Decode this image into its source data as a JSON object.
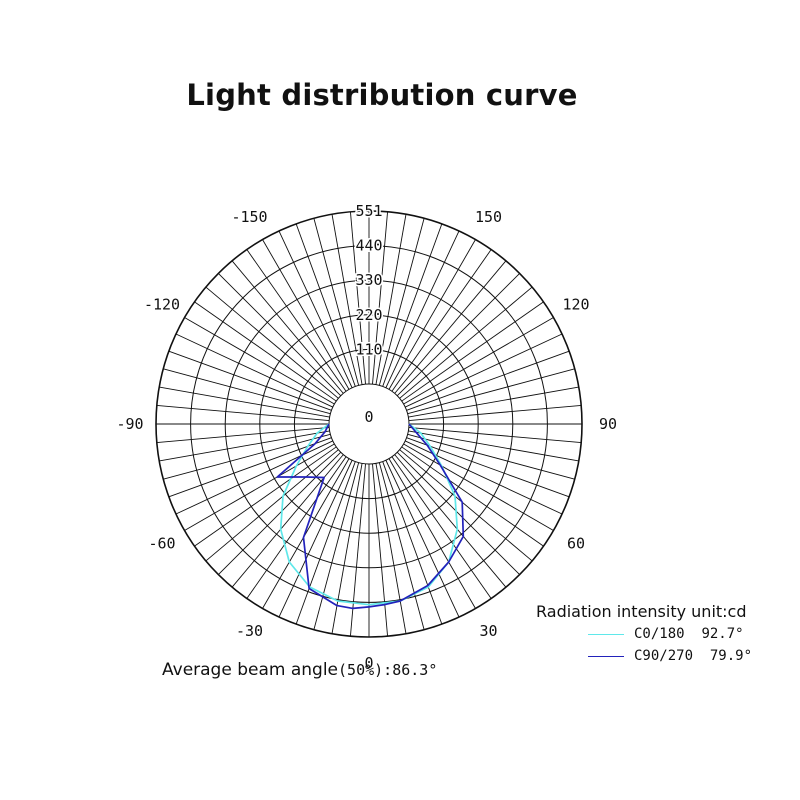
{
  "chart_data": {
    "type": "polar",
    "title": "Light distribution curve",
    "radial_ticks": [
      "0",
      "110",
      "220",
      "330",
      "440",
      "551"
    ],
    "radial_max": 551,
    "angle_labels": [
      "0",
      "30",
      "60",
      "90",
      "120",
      "150",
      "-150",
      "-120",
      "-90",
      "-60",
      "-30"
    ],
    "legend_title": "Radiation intensity unit:cd",
    "grid": true,
    "series": [
      {
        "name": "C0/180",
        "beam_angle": "92.7°",
        "color": "#5fe8ea",
        "angles": [
          -90,
          -80,
          -70,
          -60,
          -50,
          -40,
          -30,
          -20,
          -10,
          0,
          10,
          20,
          30,
          40,
          50,
          60,
          70,
          80,
          90
        ],
        "values": [
          0,
          40,
          80,
          140,
          230,
          310,
          380,
          425,
          445,
          448,
          445,
          425,
          380,
          310,
          230,
          140,
          80,
          40,
          0
        ]
      },
      {
        "name": "C90/270",
        "beam_angle": "79.9°",
        "color": "#2222bb",
        "angles": [
          -90,
          -80,
          -70,
          -60,
          -50,
          -40,
          -30,
          -20,
          -10,
          -5,
          0,
          5,
          10,
          20,
          30,
          40,
          50,
          60,
          70,
          80,
          90
        ],
        "values": [
          0,
          15,
          55,
          210,
          135,
          95,
          290,
          430,
          460,
          462,
          455,
          450,
          445,
          420,
          380,
          340,
          260,
          135,
          70,
          25,
          0
        ]
      }
    ],
    "average_beam_angle_label": "Average beam angle",
    "average_beam_angle_value": "(50%):86.3°"
  }
}
